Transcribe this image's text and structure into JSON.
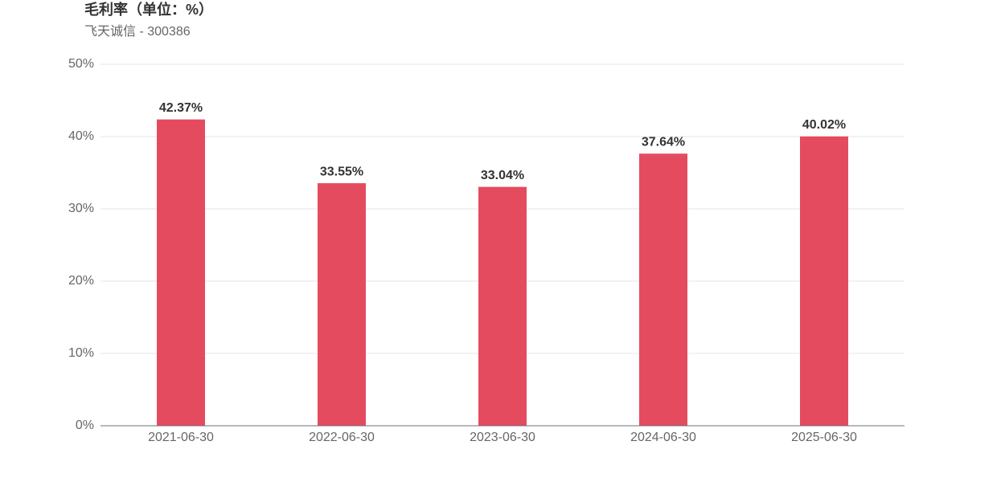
{
  "chart_data": {
    "type": "bar",
    "title": "毛利率（单位：%）",
    "subtitle": "飞天诚信 - 300386",
    "categories": [
      "2021-06-30",
      "2022-06-30",
      "2023-06-30",
      "2024-06-30",
      "2025-06-30"
    ],
    "values": [
      42.37,
      33.55,
      33.04,
      37.64,
      40.02
    ],
    "value_labels": [
      "42.37%",
      "33.55%",
      "33.04%",
      "37.64%",
      "40.02%"
    ],
    "color": "#e54b5f",
    "ylim": [
      0,
      50
    ],
    "yticks": [
      {
        "value": 0,
        "label": "0%"
      },
      {
        "value": 10,
        "label": "10%"
      },
      {
        "value": 20,
        "label": "20%"
      },
      {
        "value": 30,
        "label": "30%"
      },
      {
        "value": 40,
        "label": "40%"
      },
      {
        "value": 50,
        "label": "50%"
      }
    ],
    "grid": true
  }
}
